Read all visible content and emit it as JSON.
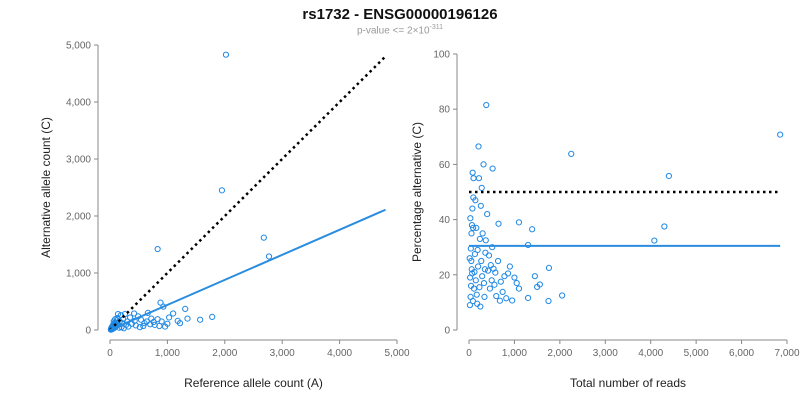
{
  "title": "rs1732 - ENSG00000196126",
  "subtitle": {
    "prefix": "p-value <= 2×10",
    "exponent": "-311"
  },
  "colors": {
    "points": "#1f88e5",
    "fit_line": "#2a8de0",
    "dotted_line": "#000000"
  },
  "chart_data": [
    {
      "type": "scatter",
      "name": "left",
      "xlabel": "Reference allele count (A)",
      "ylabel": "Alternative allele count (C)",
      "xlim": [
        0,
        5000
      ],
      "ylim": [
        0,
        5000
      ],
      "xticks": [
        0,
        1000,
        2000,
        3000,
        4000,
        5000
      ],
      "yticks": [
        0,
        1000,
        2000,
        3000,
        4000,
        5000
      ],
      "xtick_labels": [
        "0",
        "1,000",
        "2,000",
        "3,000",
        "4,000",
        "5,000"
      ],
      "ytick_labels": [
        "0",
        "1,000",
        "2,000",
        "3,000",
        "4,000",
        "5,000"
      ],
      "points": [
        [
          2020,
          4830
        ],
        [
          1950,
          2450
        ],
        [
          2680,
          1620
        ],
        [
          2770,
          1290
        ],
        [
          830,
          1420
        ],
        [
          880,
          480
        ],
        [
          930,
          410
        ],
        [
          660,
          300
        ],
        [
          1310,
          370
        ],
        [
          1100,
          290
        ],
        [
          1780,
          230
        ],
        [
          1570,
          180
        ],
        [
          1030,
          220
        ],
        [
          830,
          190
        ],
        [
          760,
          140
        ],
        [
          900,
          150
        ],
        [
          1180,
          160
        ],
        [
          1350,
          200
        ],
        [
          1220,
          120
        ],
        [
          1000,
          110
        ],
        [
          700,
          100
        ],
        [
          600,
          120
        ],
        [
          540,
          180
        ],
        [
          490,
          240
        ],
        [
          430,
          160
        ],
        [
          380,
          110
        ],
        [
          350,
          220
        ],
        [
          300,
          150
        ],
        [
          280,
          90
        ],
        [
          260,
          280
        ],
        [
          230,
          190
        ],
        [
          210,
          120
        ],
        [
          190,
          260
        ],
        [
          170,
          150
        ],
        [
          150,
          90
        ],
        [
          140,
          280
        ],
        [
          130,
          210
        ],
        [
          120,
          170
        ],
        [
          110,
          130
        ],
        [
          100,
          60
        ],
        [
          95,
          110
        ],
        [
          90,
          190
        ],
        [
          85,
          80
        ],
        [
          80,
          40
        ],
        [
          75,
          120
        ],
        [
          70,
          60
        ],
        [
          65,
          150
        ],
        [
          60,
          30
        ],
        [
          55,
          90
        ],
        [
          50,
          20
        ],
        [
          45,
          70
        ],
        [
          40,
          40
        ],
        [
          35,
          15
        ],
        [
          30,
          50
        ],
        [
          25,
          10
        ],
        [
          20,
          30
        ],
        [
          15,
          5
        ],
        [
          320,
          60
        ],
        [
          450,
          80
        ],
        [
          520,
          50
        ],
        [
          580,
          70
        ],
        [
          640,
          150
        ],
        [
          720,
          200
        ],
        [
          780,
          90
        ],
        [
          860,
          70
        ],
        [
          960,
          60
        ],
        [
          420,
          290
        ],
        [
          200,
          50
        ],
        [
          240,
          30
        ],
        [
          160,
          40
        ]
      ],
      "fit_line": [
        [
          0,
          0
        ],
        [
          4800,
          2110
        ]
      ],
      "dotted_line": [
        [
          0,
          0
        ],
        [
          4800,
          4800
        ]
      ]
    },
    {
      "type": "scatter",
      "name": "right",
      "xlabel": "Total number of reads",
      "ylabel": "Percentage alternative (C)",
      "xlim": [
        0,
        7000
      ],
      "ylim": [
        0,
        100
      ],
      "xticks": [
        0,
        1000,
        2000,
        3000,
        4000,
        5000,
        6000,
        7000
      ],
      "yticks": [
        0,
        20,
        40,
        60,
        80,
        100
      ],
      "xtick_labels": [
        "0",
        "1,000",
        "2,000",
        "3,000",
        "4,000",
        "5,000",
        "6,000",
        "7,000"
      ],
      "ytick_labels": [
        "0",
        "20",
        "40",
        "60",
        "80",
        "100"
      ],
      "points": [
        [
          6850,
          70.8
        ],
        [
          4400,
          55.8
        ],
        [
          4300,
          37.5
        ],
        [
          4080,
          32.4
        ],
        [
          2250,
          63.8
        ],
        [
          2050,
          12.5
        ],
        [
          1760,
          22.5
        ],
        [
          1750,
          10.5
        ],
        [
          1560,
          16.5
        ],
        [
          1500,
          15.6
        ],
        [
          1450,
          19.5
        ],
        [
          1390,
          36.5
        ],
        [
          1300,
          30.8
        ],
        [
          1300,
          11.6
        ],
        [
          1100,
          39.0
        ],
        [
          1100,
          15.0
        ],
        [
          1050,
          17.0
        ],
        [
          1000,
          19.0
        ],
        [
          950,
          10.7
        ],
        [
          900,
          23.0
        ],
        [
          860,
          20.5
        ],
        [
          820,
          11.5
        ],
        [
          780,
          19.5
        ],
        [
          740,
          13.8
        ],
        [
          700,
          17.5
        ],
        [
          680,
          10.6
        ],
        [
          650,
          38.5
        ],
        [
          640,
          25.0
        ],
        [
          600,
          12.3
        ],
        [
          580,
          20.8
        ],
        [
          560,
          16.4
        ],
        [
          540,
          22.2
        ],
        [
          520,
          58.5
        ],
        [
          510,
          30.0
        ],
        [
          500,
          18.0
        ],
        [
          480,
          23.5
        ],
        [
          460,
          15.0
        ],
        [
          440,
          27.0
        ],
        [
          420,
          21.5
        ],
        [
          400,
          42.0
        ],
        [
          380,
          81.5
        ],
        [
          370,
          32.5
        ],
        [
          360,
          28.0
        ],
        [
          350,
          22.0
        ],
        [
          340,
          12.0
        ],
        [
          330,
          17.0
        ],
        [
          320,
          60.0
        ],
        [
          300,
          35.0
        ],
        [
          290,
          19.5
        ],
        [
          280,
          51.5
        ],
        [
          270,
          25.0
        ],
        [
          260,
          45.0
        ],
        [
          250,
          8.5
        ],
        [
          240,
          33.0
        ],
        [
          230,
          15.5
        ],
        [
          220,
          55.0
        ],
        [
          210,
          66.5
        ],
        [
          200,
          23.0
        ],
        [
          190,
          29.0
        ],
        [
          180,
          9.5
        ],
        [
          170,
          12.8
        ],
        [
          160,
          37.0
        ],
        [
          150,
          18.0
        ],
        [
          140,
          47.0
        ],
        [
          130,
          27.5
        ],
        [
          120,
          21.0
        ],
        [
          110,
          15.0
        ],
        [
          100,
          55.0
        ],
        [
          95,
          48.0
        ],
        [
          90,
          37.0
        ],
        [
          85,
          10.5
        ],
        [
          80,
          57.0
        ],
        [
          75,
          44.0
        ],
        [
          70,
          20.5
        ],
        [
          65,
          38.0
        ],
        [
          60,
          22.0
        ],
        [
          55,
          35.0
        ],
        [
          50,
          25.0
        ],
        [
          45,
          16.0
        ],
        [
          40,
          29.5
        ],
        [
          35,
          12.0
        ],
        [
          30,
          40.5
        ],
        [
          25,
          19.0
        ],
        [
          20,
          9.0
        ],
        [
          15,
          26.0
        ]
      ],
      "fit_line": [
        [
          0,
          30.5
        ],
        [
          6850,
          30.5
        ]
      ],
      "dotted_line": [
        [
          0,
          50
        ],
        [
          6850,
          50
        ]
      ]
    }
  ]
}
